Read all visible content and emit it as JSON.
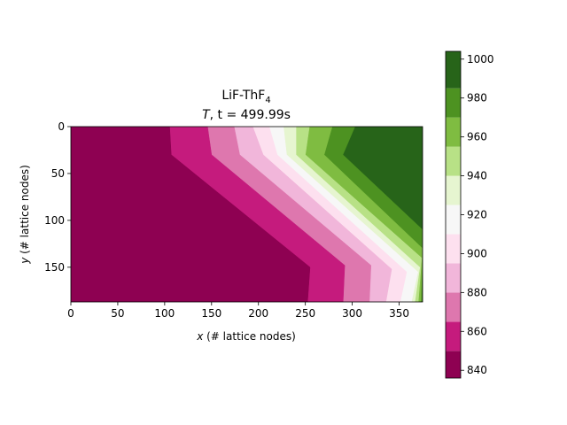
{
  "chart_data": {
    "type": "heatmap",
    "title_line1": "LiF-ThF",
    "title_line1_sub": "4",
    "title_line2_var": "T",
    "title_line2_rest": ", t = 499.99s",
    "xlabel_var": "x",
    "xlabel_rest": " (# lattice nodes)",
    "ylabel_var": "y",
    "ylabel_rest": " (# lattice nodes)",
    "xlim": [
      0,
      375
    ],
    "ylim": [
      0,
      187
    ],
    "y_inverted": true,
    "x_ticks": [
      0,
      50,
      100,
      150,
      200,
      250,
      300,
      350
    ],
    "y_ticks": [
      0,
      50,
      100,
      150
    ],
    "colorbar": {
      "min": 836,
      "max": 1004,
      "ticks": [
        840,
        860,
        880,
        900,
        920,
        940,
        960,
        980,
        1000
      ],
      "levels": [
        836,
        850,
        865,
        880,
        895,
        910,
        925,
        940,
        955,
        970,
        985,
        1004
      ],
      "colors": [
        "#8e0152",
        "#c51b7d",
        "#de77ae",
        "#f1b6da",
        "#fde0ef",
        "#f7f7f7",
        "#e6f5d0",
        "#b8e186",
        "#7fbc41",
        "#4d9221",
        "#276419"
      ]
    },
    "contour_boundaries": [
      {
        "level": 850,
        "points": [
          [
            105,
            0
          ],
          [
            107,
            30
          ],
          [
            255,
            150
          ],
          [
            252,
            187
          ]
        ]
      },
      {
        "level": 865,
        "points": [
          [
            145,
            0
          ],
          [
            150,
            30
          ],
          [
            292,
            148
          ],
          [
            290,
            187
          ]
        ]
      },
      {
        "level": 880,
        "points": [
          [
            173,
            0
          ],
          [
            180,
            30
          ],
          [
            320,
            148
          ],
          [
            318,
            187
          ]
        ]
      },
      {
        "level": 895,
        "points": [
          [
            192,
            0
          ],
          [
            205,
            30
          ],
          [
            342,
            152
          ],
          [
            335,
            187
          ]
        ]
      },
      {
        "level": 910,
        "points": [
          [
            210,
            0
          ],
          [
            220,
            30
          ],
          [
            358,
            155
          ],
          [
            350,
            187
          ]
        ]
      },
      {
        "level": 925,
        "points": [
          [
            226,
            0
          ],
          [
            230,
            30
          ],
          [
            370,
            155
          ],
          [
            362,
            187
          ]
        ]
      },
      {
        "level": 940,
        "points": [
          [
            240,
            0
          ],
          [
            240,
            30
          ],
          [
            372,
            150
          ],
          [
            366,
            187
          ]
        ]
      },
      {
        "level": 955,
        "points": [
          [
            255,
            0
          ],
          [
            250,
            30
          ],
          [
            374,
            140
          ],
          [
            370,
            187
          ]
        ]
      },
      {
        "level": 970,
        "points": [
          [
            280,
            0
          ],
          [
            270,
            30
          ],
          [
            375,
            130
          ],
          [
            373,
            187
          ]
        ]
      },
      {
        "level": 985,
        "points": [
          [
            305,
            0
          ],
          [
            290,
            30
          ],
          [
            375,
            110
          ],
          [
            375,
            187
          ]
        ]
      }
    ]
  }
}
